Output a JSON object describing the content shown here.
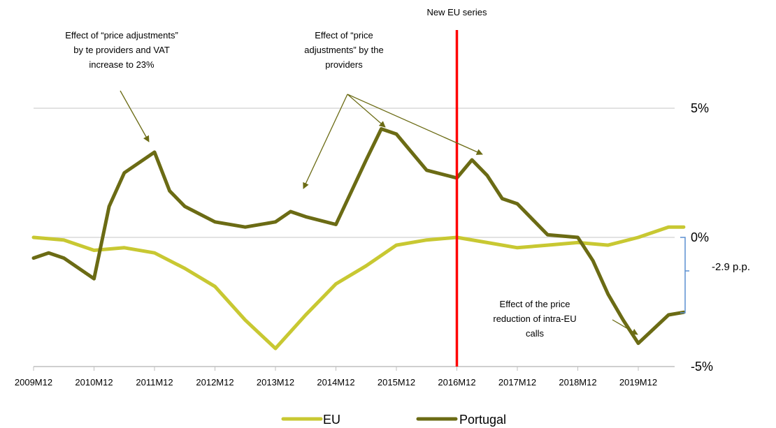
{
  "chart_data": {
    "type": "line",
    "title": "",
    "xlabel": "",
    "ylabel": "",
    "x_ticks": [
      "2009M12",
      "2010M12",
      "2011M12",
      "2012M12",
      "2013M12",
      "2014M12",
      "2015M12",
      "2016M12",
      "2017M12",
      "2018M12",
      "2019M12"
    ],
    "y_ticks": [
      "5%",
      "0%",
      "-5%"
    ],
    "ylim": [
      -5,
      5
    ],
    "grid": "horizontal",
    "legend_position": "bottom",
    "colors": {
      "EU": "#c8c832",
      "Portugal": "#6b6b14",
      "marker": "#ff0000",
      "bracket": "#5b8fd0"
    },
    "series": [
      {
        "name": "EU",
        "x": [
          "2009M12",
          "2010M06",
          "2010M12",
          "2011M06",
          "2011M12",
          "2012M06",
          "2012M12",
          "2013M06",
          "2013M12",
          "2014M06",
          "2014M12",
          "2015M06",
          "2015M12",
          "2016M06",
          "2016M12",
          "2017M06",
          "2017M12",
          "2018M06",
          "2018M12",
          "2019M06",
          "2019M12",
          "2020M06",
          "2020M09"
        ],
        "values": [
          0.0,
          -0.1,
          -0.5,
          -0.4,
          -0.6,
          -1.2,
          -1.9,
          -3.2,
          -4.3,
          -3.0,
          -1.8,
          -1.1,
          -0.3,
          -0.1,
          0.0,
          -0.2,
          -0.4,
          -0.3,
          -0.2,
          -0.3,
          0.0,
          0.4,
          0.4
        ]
      },
      {
        "name": "Portugal",
        "x": [
          "2009M12",
          "2010M03",
          "2010M06",
          "2010M12",
          "2011M03",
          "2011M06",
          "2011M12",
          "2012M03",
          "2012M06",
          "2012M12",
          "2013M06",
          "2013M12",
          "2014M03",
          "2014M06",
          "2014M12",
          "2015M06",
          "2015M09",
          "2015M12",
          "2016M03",
          "2016M06",
          "2016M12",
          "2017M03",
          "2017M06",
          "2017M09",
          "2017M12",
          "2018M06",
          "2018M12",
          "2019M03",
          "2019M06",
          "2019M09",
          "2019M12",
          "2020M06",
          "2020M09"
        ],
        "values": [
          -0.8,
          -0.6,
          -0.8,
          -1.6,
          1.2,
          2.5,
          3.3,
          1.8,
          1.2,
          0.6,
          0.4,
          0.6,
          1.0,
          0.8,
          0.5,
          3.0,
          4.2,
          4.0,
          3.3,
          2.6,
          2.3,
          3.0,
          2.4,
          1.5,
          1.3,
          0.1,
          0.0,
          -0.9,
          -2.2,
          -3.2,
          -4.1,
          -3.0,
          -2.9
        ]
      }
    ],
    "vertical_marker": {
      "x": "2016M12",
      "label": "New EU series"
    },
    "bracket_label": "-2.9 p.p.",
    "annotations": [
      {
        "lines": [
          "Effect of “price adjustments”",
          "by te providers and VAT",
          "increase to 23%"
        ]
      },
      {
        "lines": [
          "Effect of “price",
          "adjustments” by the",
          "providers"
        ]
      },
      {
        "lines": [
          "Effect of the price",
          "reduction of intra-EU",
          "calls"
        ]
      }
    ]
  }
}
